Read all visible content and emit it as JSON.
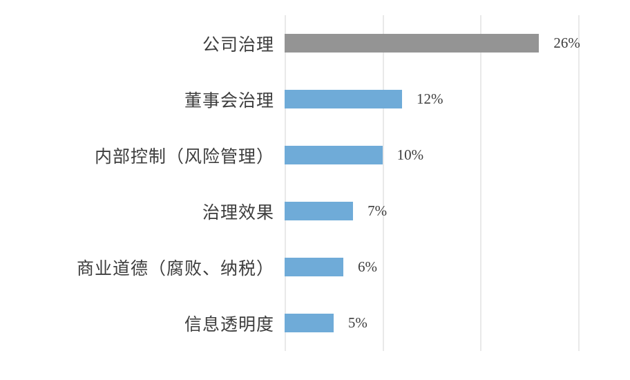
{
  "page": {
    "background_color": "#ffffff"
  },
  "chart_data": {
    "type": "bar",
    "orientation": "horizontal",
    "title": "",
    "xlabel": "",
    "ylabel": "",
    "categories": [
      "公司治理",
      "董事会治理",
      "内部控制（风险管理）",
      "治理效果",
      "商业道德（腐败、纳税）",
      "信息透明度"
    ],
    "values": [
      26,
      12,
      10,
      7,
      6,
      5
    ],
    "value_labels": [
      "26%",
      "12%",
      "10%",
      "7%",
      "6%",
      "5%"
    ],
    "bar_colors": [
      "#949494",
      "#6FABD8",
      "#6FABD8",
      "#6FABD8",
      "#6FABD8",
      "#6FABD8"
    ],
    "xlim": [
      0,
      30
    ],
    "gridline_values": [
      0,
      10,
      20,
      30
    ],
    "grid": true,
    "gridline_color": "#E9E9E9",
    "axis_tick_labels_shown": false,
    "legend": false,
    "text_color": "#3D3D3D"
  }
}
